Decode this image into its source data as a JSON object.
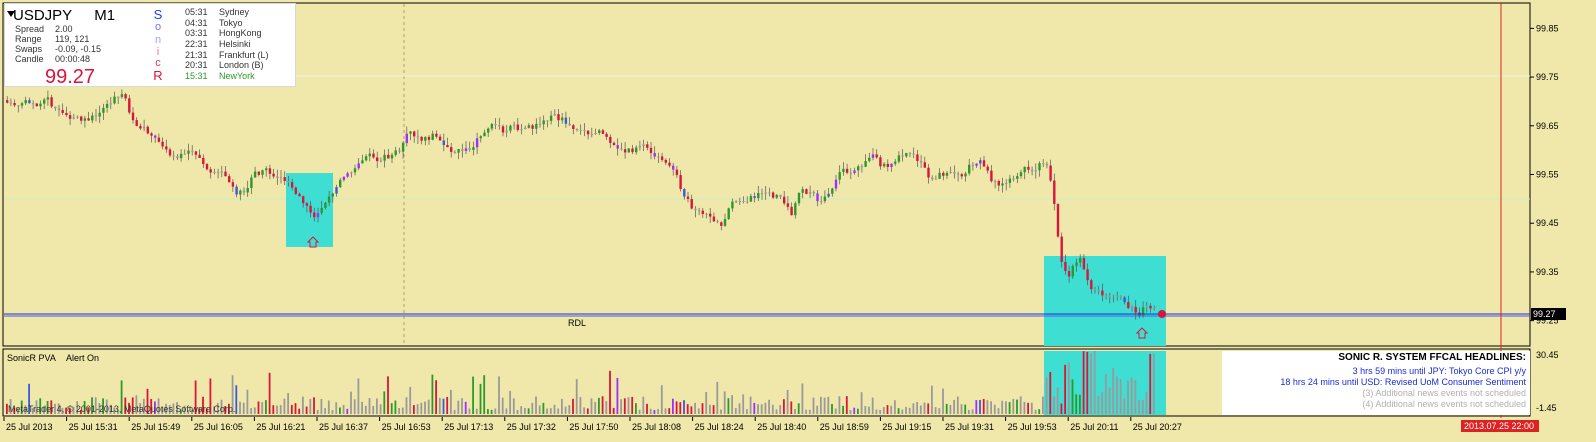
{
  "symbol": "USDJPY",
  "timeframe": "M1",
  "stats": [
    {
      "label": "Spread",
      "value": "2.00"
    },
    {
      "label": "Range",
      "value": "119, 121"
    },
    {
      "label": "Swaps",
      "value": "-0.09, -0.15"
    },
    {
      "label": "Candle",
      "value": "00:00:48"
    }
  ],
  "current_price": "99.27",
  "sonic_letters": [
    {
      "char": "S",
      "color": "#1e3cff"
    },
    {
      "char": "o",
      "color": "#7a6cff"
    },
    {
      "char": "n",
      "color": "#9ea0ff"
    },
    {
      "char": "i",
      "color": "#ff6f8f"
    },
    {
      "char": "c",
      "color": "#e63a5c"
    },
    {
      "char": "R",
      "color": "#dc143c"
    }
  ],
  "sessions": [
    {
      "time": "05:31",
      "name": "Sydney",
      "color": "#333333"
    },
    {
      "time": "04:31",
      "name": "Tokyo",
      "color": "#333333"
    },
    {
      "time": "03:31",
      "name": "HongKong",
      "color": "#333333"
    },
    {
      "time": "22:31",
      "name": "Helsinki",
      "color": "#333333"
    },
    {
      "time": "21:31",
      "name": "Frankfurt  (L)",
      "color": "#333333"
    },
    {
      "time": "20:31",
      "name": "London  (B)",
      "color": "#333333"
    },
    {
      "time": "15:31",
      "name": "NewYork",
      "color": "#2a9a2a"
    }
  ],
  "rdl_label": "RDL",
  "price_axis": {
    "ticks": [
      "99.85",
      "99.75",
      "99.65",
      "99.55",
      "99.45",
      "99.35",
      "99.25"
    ],
    "current_label": "99.27"
  },
  "indicator": {
    "title": "SonicR PVA",
    "alert": "Alert On",
    "axis_ticks": [
      "30.45",
      "-1.45"
    ]
  },
  "news": {
    "headline": "SONIC R. SYSTEM  FFCAL HEADLINES:",
    "items": [
      {
        "text": "3 hrs 59 mins until JPY: Tokyo Core CPI y/y",
        "color": "#1a2bd6"
      },
      {
        "text": "18 hrs 24 mins until USD: Revised UoM Consumer Sentiment",
        "color": "#1a2bd6"
      },
      {
        "text": "(3)  Additional news events not scheduled",
        "color": "#b0b0b0"
      },
      {
        "text": "(4)  Additional news events not scheduled",
        "color": "#b0b0b0"
      }
    ]
  },
  "copyright": "MetaTrader 4, © 2001-2013, MetaQuotes Software Corp.",
  "time_axis": [
    "25 Jul 2013",
    "25 Jul 15:31",
    "25 Jul 15:49",
    "25 Jul 16:05",
    "25 Jul 16:21",
    "25 Jul 16:37",
    "25 Jul 16:53",
    "25 Jul 17:13",
    "25 Jul 17:32",
    "25 Jul 17:50",
    "25 Jul 18:08",
    "25 Jul 18:24",
    "25 Jul 18:40",
    "25 Jul 18:59",
    "25 Jul 19:15",
    "25 Jul 19:31",
    "25 Jul 19:53",
    "25 Jul 20:11",
    "25 Jul 20:27"
  ],
  "time_cursor_label": "2013.07.25 22:00",
  "colors": {
    "background": "#f0e8aa",
    "bull": "#2a9a2a",
    "bear": "#dc143c",
    "climax_up": "#3a5ad6",
    "climax_dn": "#9b30ff",
    "neutral": "#9a9a9a",
    "pva_box": "#3fded3",
    "cursor": "#dd2222",
    "price_line": "#1a2bd6"
  },
  "chart_data": {
    "type": "candlestick",
    "ylim": [
      99.2,
      99.9
    ],
    "pva_ylim": [
      -1.45,
      30.45
    ],
    "current_price": 99.27,
    "anchors": [
      [
        0,
        99.71
      ],
      [
        8,
        99.7
      ],
      [
        15,
        99.69
      ],
      [
        18,
        99.7
      ],
      [
        24,
        99.69
      ],
      [
        30,
        99.7
      ],
      [
        40,
        99.69
      ],
      [
        48,
        99.71
      ],
      [
        58,
        99.68
      ],
      [
        68,
        99.67
      ],
      [
        76,
        99.67
      ],
      [
        85,
        99.66
      ],
      [
        95,
        99.67
      ],
      [
        105,
        99.68
      ],
      [
        115,
        99.7
      ],
      [
        125,
        99.72
      ],
      [
        132,
        99.68
      ],
      [
        140,
        99.65
      ],
      [
        150,
        99.64
      ],
      [
        160,
        99.62
      ],
      [
        168,
        99.6
      ],
      [
        178,
        99.58
      ],
      [
        188,
        99.6
      ],
      [
        198,
        99.59
      ],
      [
        208,
        99.57
      ],
      [
        215,
        99.55
      ],
      [
        225,
        99.56
      ],
      [
        232,
        99.53
      ],
      [
        240,
        99.51
      ],
      [
        248,
        99.52
      ],
      [
        256,
        99.55
      ],
      [
        266,
        99.56
      ],
      [
        276,
        99.55
      ],
      [
        284,
        99.54
      ],
      [
        292,
        99.53
      ],
      [
        300,
        99.51
      ],
      [
        306,
        99.49
      ],
      [
        312,
        99.48
      ],
      [
        318,
        99.46
      ],
      [
        326,
        99.48
      ],
      [
        334,
        99.51
      ],
      [
        342,
        99.54
      ],
      [
        352,
        99.55
      ],
      [
        362,
        99.58
      ],
      [
        372,
        99.59
      ],
      [
        382,
        99.58
      ],
      [
        392,
        99.59
      ],
      [
        402,
        99.6
      ],
      [
        410,
        99.64
      ],
      [
        418,
        99.63
      ],
      [
        426,
        99.62
      ],
      [
        436,
        99.63
      ],
      [
        446,
        99.61
      ],
      [
        456,
        99.6
      ],
      [
        466,
        99.6
      ],
      [
        476,
        99.61
      ],
      [
        486,
        99.64
      ],
      [
        496,
        99.65
      ],
      [
        506,
        99.64
      ],
      [
        516,
        99.65
      ],
      [
        526,
        99.64
      ],
      [
        536,
        99.65
      ],
      [
        546,
        99.66
      ],
      [
        556,
        99.67
      ],
      [
        566,
        99.66
      ],
      [
        576,
        99.64
      ],
      [
        586,
        99.64
      ],
      [
        596,
        99.63
      ],
      [
        606,
        99.64
      ],
      [
        616,
        99.61
      ],
      [
        626,
        99.6
      ],
      [
        636,
        99.6
      ],
      [
        646,
        99.61
      ],
      [
        656,
        99.59
      ],
      [
        666,
        99.58
      ],
      [
        676,
        99.56
      ],
      [
        684,
        99.52
      ],
      [
        694,
        99.48
      ],
      [
        704,
        99.47
      ],
      [
        714,
        99.46
      ],
      [
        724,
        99.45
      ],
      [
        734,
        99.49
      ],
      [
        744,
        99.5
      ],
      [
        754,
        99.5
      ],
      [
        764,
        99.51
      ],
      [
        774,
        99.51
      ],
      [
        784,
        99.5
      ],
      [
        794,
        99.47
      ],
      [
        804,
        99.52
      ],
      [
        814,
        99.51
      ],
      [
        824,
        99.49
      ],
      [
        834,
        99.52
      ],
      [
        844,
        99.57
      ],
      [
        854,
        99.55
      ],
      [
        864,
        99.57
      ],
      [
        874,
        99.59
      ],
      [
        884,
        99.57
      ],
      [
        894,
        99.57
      ],
      [
        904,
        99.59
      ],
      [
        914,
        99.6
      ],
      [
        924,
        99.57
      ],
      [
        934,
        99.54
      ],
      [
        944,
        99.55
      ],
      [
        954,
        99.56
      ],
      [
        964,
        99.55
      ],
      [
        974,
        99.57
      ],
      [
        984,
        99.58
      ],
      [
        994,
        99.54
      ],
      [
        1004,
        99.53
      ],
      [
        1014,
        99.54
      ],
      [
        1024,
        99.56
      ],
      [
        1034,
        99.56
      ],
      [
        1044,
        99.57
      ],
      [
        1052,
        99.56
      ],
      [
        1056,
        99.5
      ],
      [
        1060,
        99.43
      ],
      [
        1064,
        99.37
      ],
      [
        1070,
        99.34
      ],
      [
        1076,
        99.36
      ],
      [
        1082,
        99.38
      ],
      [
        1088,
        99.34
      ],
      [
        1094,
        99.31
      ],
      [
        1100,
        99.32
      ],
      [
        1106,
        99.3
      ],
      [
        1112,
        99.3
      ],
      [
        1118,
        99.31
      ],
      [
        1124,
        99.29
      ],
      [
        1130,
        99.28
      ],
      [
        1136,
        99.27
      ],
      [
        1142,
        99.26
      ],
      [
        1148,
        99.28
      ],
      [
        1156,
        99.28
      ]
    ],
    "time_cursor": "2013.07.25 22:00"
  }
}
